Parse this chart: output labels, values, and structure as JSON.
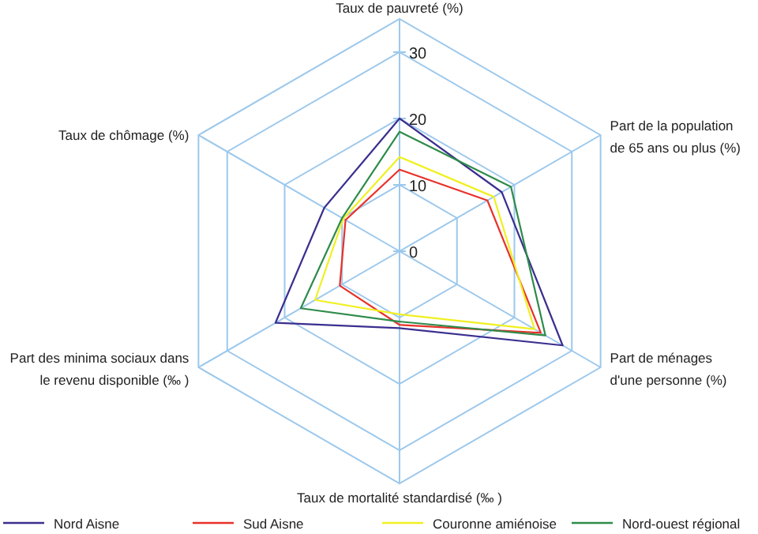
{
  "chart_data": {
    "type": "radar",
    "categories": [
      "Taux de pauvreté (%)",
      "Part de la population de 65 ans ou plus (%)",
      "Part de ménages d'une personne  (%)",
      "Taux de mortalité standardisé (‰ )",
      "Part des minima sociaux dans le revenu disponible (‰ )",
      "Taux de chômage (%)"
    ],
    "ylim": [
      0,
      35
    ],
    "yticks": [
      0,
      10,
      20,
      30
    ],
    "grid": true,
    "legend": "bottom",
    "marker": "none",
    "series": [
      {
        "name": "Nord Aisne",
        "color": "#3a2f8f",
        "values": [
          20,
          17.8,
          28.4,
          11.6,
          21.6,
          13.1
        ]
      },
      {
        "name": "Sud Aisne",
        "color": "#e8312a",
        "values": [
          12.3,
          15.3,
          24.6,
          11.1,
          10.4,
          9.4
        ]
      },
      {
        "name": "Couronne amiénoise",
        "color": "#f0f020",
        "values": [
          14.2,
          16.4,
          23.5,
          9.5,
          14.7,
          9.8
        ]
      },
      {
        "name": "Nord-ouest régional",
        "color": "#2e8b4a",
        "values": [
          18,
          19.4,
          25.4,
          10.6,
          17.2,
          10
        ]
      }
    ]
  }
}
